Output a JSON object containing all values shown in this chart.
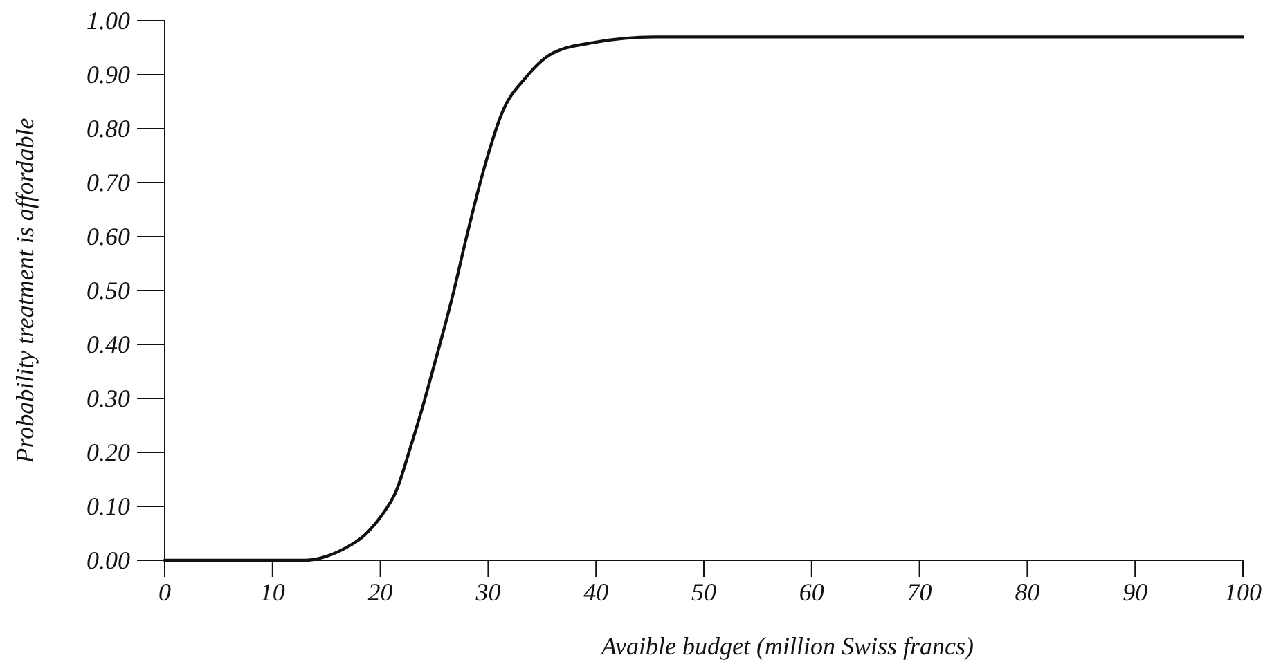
{
  "chart_data": {
    "type": "line",
    "xlabel": "Avaible budget (million Swiss francs)",
    "ylabel": "Probability treatment is affordable",
    "x": [
      0,
      10,
      13,
      14.6,
      16.5,
      18.5,
      20,
      21.5,
      22.8,
      24,
      24.9,
      26.7,
      28,
      29.6,
      31.3,
      33.5,
      36,
      39.9,
      45.4,
      50,
      60,
      80,
      100
    ],
    "series": [
      {
        "color": "#111111",
        "values": [
          0,
          0,
          0,
          0.005,
          0.02,
          0.046,
          0.08,
          0.13,
          0.21,
          0.29,
          0.355,
          0.49,
          0.6,
          0.725,
          0.83,
          0.895,
          0.94,
          0.96,
          0.97,
          0.97,
          0.97,
          0.97,
          0.97
        ]
      }
    ],
    "xlim": [
      0,
      100
    ],
    "xticks": [
      0,
      10,
      20,
      30,
      40,
      50,
      60,
      70,
      80,
      90,
      100
    ],
    "ylim": [
      0,
      1
    ],
    "yticks": [
      {
        "value": 0,
        "label": "0.00"
      },
      {
        "value": 0.1,
        "label": "0.10"
      },
      {
        "value": 0.2,
        "label": "0.20"
      },
      {
        "value": 0.3,
        "label": "0.30"
      },
      {
        "value": 0.4,
        "label": "0.40"
      },
      {
        "value": 0.5,
        "label": "0.50"
      },
      {
        "value": 0.6,
        "label": "0.60"
      },
      {
        "value": 0.7,
        "label": "0.70"
      },
      {
        "value": 0.8,
        "label": "0.80"
      },
      {
        "value": 0.9,
        "label": "0.90"
      },
      {
        "value": 1,
        "label": "1.00"
      }
    ],
    "grid": false,
    "marker": "none",
    "line_style": "solid"
  }
}
